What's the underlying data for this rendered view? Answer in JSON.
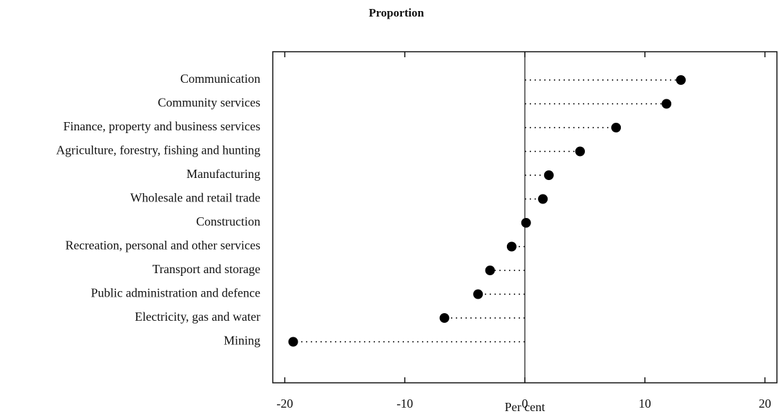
{
  "chart_data": {
    "type": "dot",
    "title": "Proportion",
    "x_label": "Per cent",
    "categories": [
      "Communication",
      "Community services",
      "Finance, property and business services",
      "Agriculture, forestry, fishing and hunting",
      "Manufacturing",
      "Wholesale and retail trade",
      "Construction",
      "Recreation, personal and other services",
      "Transport and storage",
      "Public administration and defence",
      "Electricity, gas and water",
      "Mining"
    ],
    "values": [
      13.0,
      11.8,
      7.6,
      4.6,
      2.0,
      1.5,
      0.1,
      -1.1,
      -2.9,
      -3.9,
      -6.7,
      -19.3
    ],
    "color": "#000000",
    "xlim": [
      -21,
      21
    ],
    "xticks": [
      -20,
      -10,
      0,
      10,
      20
    ]
  }
}
